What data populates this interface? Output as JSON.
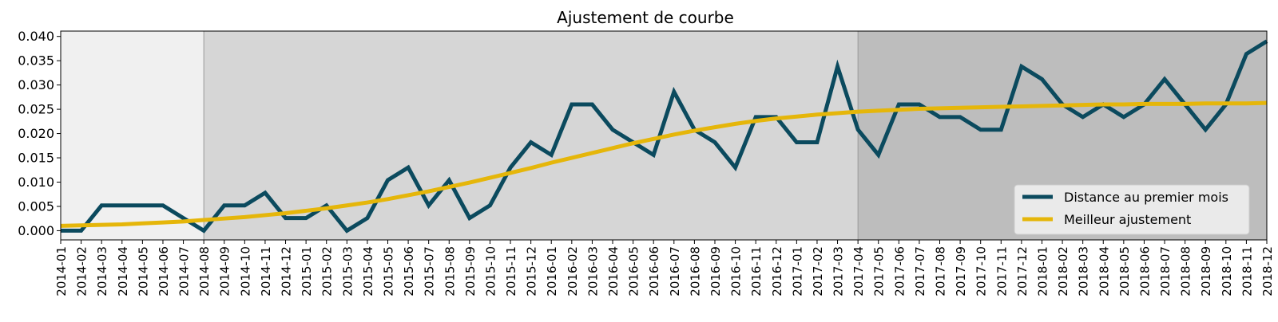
{
  "chart_data": {
    "type": "line",
    "title": "Ajustement de courbe",
    "xlabel": "",
    "ylabel": "",
    "ylim": [
      -0.0019,
      0.0411
    ],
    "yticks": [
      0.0,
      0.005,
      0.01,
      0.015,
      0.02,
      0.025,
      0.03,
      0.035,
      0.04
    ],
    "ytick_labels": [
      "0.000",
      "0.005",
      "0.010",
      "0.015",
      "0.020",
      "0.025",
      "0.030",
      "0.035",
      "0.040"
    ],
    "x": [
      "2014-01",
      "2014-02",
      "2014-03",
      "2014-04",
      "2014-05",
      "2014-06",
      "2014-07",
      "2014-08",
      "2014-09",
      "2014-10",
      "2014-11",
      "2014-12",
      "2015-01",
      "2015-02",
      "2015-03",
      "2015-04",
      "2015-05",
      "2015-06",
      "2015-07",
      "2015-08",
      "2015-09",
      "2015-10",
      "2015-11",
      "2015-12",
      "2016-01",
      "2016-02",
      "2016-03",
      "2016-04",
      "2016-05",
      "2016-06",
      "2016-07",
      "2016-08",
      "2016-09",
      "2016-10",
      "2016-11",
      "2016-12",
      "2017-01",
      "2017-02",
      "2017-03",
      "2017-04",
      "2017-05",
      "2017-06",
      "2017-07",
      "2017-08",
      "2017-09",
      "2017-10",
      "2017-11",
      "2017-12",
      "2018-01",
      "2018-02",
      "2018-03",
      "2018-04",
      "2018-05",
      "2018-06",
      "2018-07",
      "2018-08",
      "2018-09",
      "2018-10",
      "2018-11",
      "2018-12"
    ],
    "series": [
      {
        "name": "Distance au premier mois",
        "color": "#0b4a5e",
        "values": [
          0.0,
          0.0,
          0.0052,
          0.0052,
          0.0052,
          0.0052,
          0.0026,
          0.0,
          0.0052,
          0.0052,
          0.0078,
          0.0026,
          0.0026,
          0.0052,
          0.0,
          0.0026,
          0.0104,
          0.013,
          0.0052,
          0.0104,
          0.0026,
          0.0052,
          0.013,
          0.0182,
          0.0156,
          0.026,
          0.026,
          0.0208,
          0.0182,
          0.0156,
          0.0286,
          0.0208,
          0.0182,
          0.013,
          0.0234,
          0.0234,
          0.0182,
          0.0182,
          0.0338,
          0.0208,
          0.0156,
          0.026,
          0.026,
          0.0234,
          0.0234,
          0.0208,
          0.0208,
          0.0338,
          0.0312,
          0.026,
          0.0234,
          0.026,
          0.0234,
          0.026,
          0.0312,
          0.026,
          0.0208,
          0.026,
          0.0364,
          0.039
        ]
      },
      {
        "name": "Meilleur ajustement",
        "color": "#e5b60a",
        "values": [
          0.001,
          0.0011,
          0.0012,
          0.0013,
          0.0015,
          0.0017,
          0.0019,
          0.0022,
          0.0025,
          0.0028,
          0.0032,
          0.0036,
          0.0041,
          0.0046,
          0.0052,
          0.0058,
          0.0065,
          0.0073,
          0.0081,
          0.009,
          0.0099,
          0.0109,
          0.0119,
          0.0129,
          0.014,
          0.015,
          0.016,
          0.017,
          0.018,
          0.0189,
          0.0198,
          0.0206,
          0.0213,
          0.022,
          0.0226,
          0.0231,
          0.0235,
          0.0239,
          0.0242,
          0.0245,
          0.0247,
          0.0249,
          0.0251,
          0.0252,
          0.0253,
          0.0254,
          0.0255,
          0.0256,
          0.0257,
          0.0258,
          0.0259,
          0.026,
          0.026,
          0.0261,
          0.0261,
          0.0261,
          0.0262,
          0.0262,
          0.0262,
          0.0263
        ]
      }
    ],
    "bands": [
      {
        "from": "2014-01",
        "to": "2014-08",
        "color": "#f0f0f0"
      },
      {
        "from": "2014-08",
        "to": "2017-04",
        "color": "#d6d6d6"
      },
      {
        "from": "2017-04",
        "to": "2018-12",
        "color": "#bdbdbd"
      }
    ],
    "band_edge_color": "#999999",
    "legend_position": "lower right",
    "grid": false
  }
}
